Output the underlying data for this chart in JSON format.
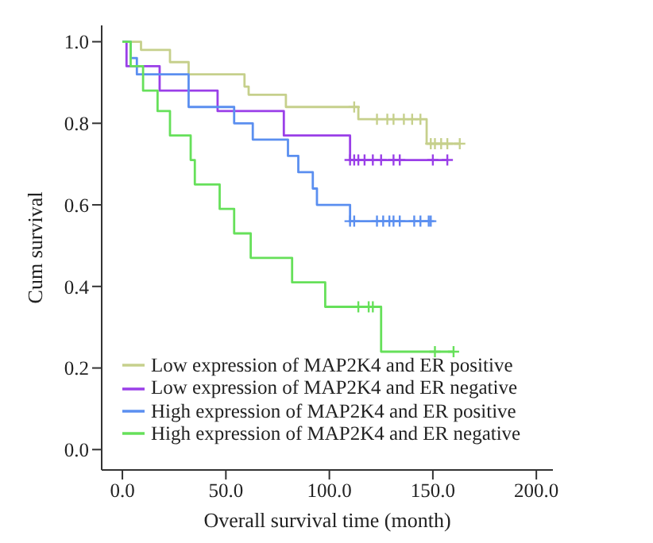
{
  "chart_data": {
    "type": "step",
    "xlabel": "Overall survival time (month)",
    "ylabel": "Cum survival",
    "xlim": [
      -10,
      208
    ],
    "ylim": [
      -0.05,
      1.04
    ],
    "xticks": [
      {
        "value": 0,
        "label": "0.0"
      },
      {
        "value": 50,
        "label": "50.0"
      },
      {
        "value": 100,
        "label": "100.0"
      },
      {
        "value": 150,
        "label": "150.0"
      },
      {
        "value": 200,
        "label": "200.0"
      }
    ],
    "yticks": [
      {
        "value": 0,
        "label": "0.0"
      },
      {
        "value": 0.2,
        "label": "0.2"
      },
      {
        "value": 0.4,
        "label": "0.4"
      },
      {
        "value": 0.6,
        "label": "0.6"
      },
      {
        "value": 0.8,
        "label": "0.8"
      },
      {
        "value": 1,
        "label": "1.0"
      }
    ],
    "grid": false,
    "legend": "bottom right",
    "line_style": "solid",
    "marker": "none",
    "series": [
      {
        "name": "Low expression of MAP2K4 and ER positive",
        "color": "#c6d08c",
        "x": [
          0,
          9,
          23,
          32,
          59,
          61,
          79,
          114,
          147,
          163
        ],
        "values": [
          1,
          0.98,
          0.95,
          0.92,
          0.89,
          0.87,
          0.84,
          0.81,
          0.75,
          0.75
        ]
      },
      {
        "name": "Low expression of MAP2K4 and ER negative",
        "color": "#9a3fe8",
        "x": [
          0,
          2,
          18,
          46,
          78,
          110,
          157
        ],
        "values": [
          1,
          0.94,
          0.88,
          0.83,
          0.77,
          0.71,
          0.71
        ]
      },
      {
        "name": "High expression of MAP2K4 and ER positive",
        "color": "#5b8ff0",
        "x": [
          0,
          4,
          7,
          32,
          54,
          63,
          80,
          85,
          92,
          94,
          110,
          149
        ],
        "values": [
          1,
          0.96,
          0.92,
          0.84,
          0.8,
          0.76,
          0.72,
          0.68,
          0.64,
          0.6,
          0.56,
          0.56
        ]
      },
      {
        "name": "High expression of MAP2K4 and ER negative",
        "color": "#66e05a",
        "x": [
          0,
          4,
          10,
          17,
          23,
          33,
          35,
          47,
          54,
          62,
          82,
          98,
          125,
          160
        ],
        "values": [
          1,
          0.94,
          0.88,
          0.83,
          0.77,
          0.71,
          0.65,
          0.59,
          0.53,
          0.47,
          0.41,
          0.35,
          0.24,
          0.24
        ]
      },
      {
        "type": "scatter",
        "marker": "cross",
        "color": "#c6d08c",
        "x": [
          112,
          123,
          128,
          131,
          136,
          140,
          144,
          149,
          151,
          154,
          157,
          163
        ],
        "values": [
          0.84,
          0.81,
          0.81,
          0.81,
          0.81,
          0.81,
          0.81,
          0.75,
          0.75,
          0.75,
          0.75,
          0.75
        ]
      },
      {
        "type": "scatter",
        "marker": "cross",
        "color": "#9a3fe8",
        "x": [
          110,
          112,
          114,
          117,
          121,
          125,
          131,
          134,
          150,
          157
        ],
        "values": [
          0.71,
          0.71,
          0.71,
          0.71,
          0.71,
          0.71,
          0.71,
          0.71,
          0.71,
          0.71
        ]
      },
      {
        "type": "scatter",
        "marker": "cross",
        "color": "#5b8ff0",
        "x": [
          110,
          112,
          123,
          126,
          129,
          131,
          134,
          141,
          144,
          148,
          149
        ],
        "values": [
          0.56,
          0.56,
          0.56,
          0.56,
          0.56,
          0.56,
          0.56,
          0.56,
          0.56,
          0.56,
          0.56
        ]
      },
      {
        "type": "scatter",
        "marker": "cross",
        "color": "#66e05a",
        "x": [
          114,
          119,
          121,
          151,
          160
        ],
        "values": [
          0.35,
          0.35,
          0.35,
          0.24,
          0.24
        ]
      }
    ]
  }
}
